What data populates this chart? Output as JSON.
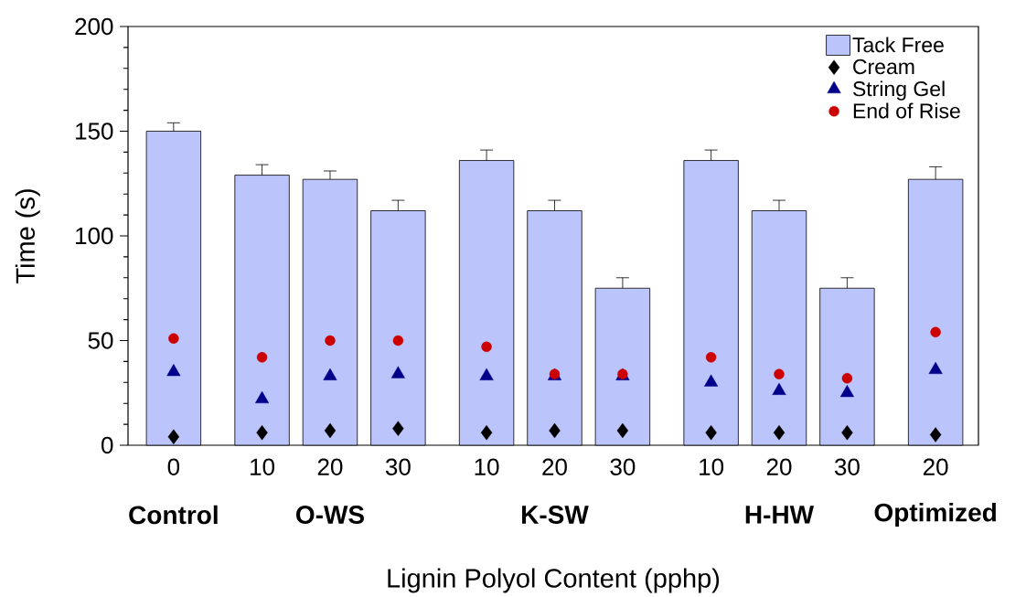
{
  "chart_data": {
    "type": "bar",
    "xlabel": "Lignin Polyol Content (pphp)",
    "ylabel": "Time (s)",
    "categories": [
      "0",
      "10",
      "20",
      "30",
      "10",
      "20",
      "30",
      "10",
      "20",
      "30",
      "20"
    ],
    "annotations": [
      "Control",
      "O-WS",
      "K-SW",
      "H-HW",
      "Optimized"
    ],
    "series": [
      {
        "name": "Tack Free",
        "color": "#bcc5fb",
        "values": [
          150,
          129,
          127,
          112,
          136,
          112,
          75,
          136,
          112,
          75,
          127
        ],
        "errors": [
          4,
          5,
          4,
          5,
          5,
          5,
          5,
          5,
          5,
          5,
          6
        ]
      },
      {
        "name": "Cream",
        "type": "scatter",
        "marker": "diamond",
        "color": "#000000",
        "values": [
          4,
          6,
          7,
          8,
          6,
          7,
          7,
          6,
          6,
          6,
          5
        ]
      },
      {
        "name": "String Gel",
        "type": "scatter",
        "marker": "triangle",
        "color": "#00008b",
        "values": [
          35,
          22,
          33,
          34,
          33,
          33,
          33,
          30,
          26,
          25,
          36
        ]
      },
      {
        "name": "End of Rise",
        "type": "scatter",
        "marker": "circle",
        "color": "#cc0000",
        "values": [
          51,
          42,
          50,
          50,
          47,
          34,
          34,
          42,
          34,
          32,
          54
        ]
      }
    ],
    "ylim": [
      0,
      200
    ],
    "yticks": [
      0,
      50,
      100,
      150,
      200
    ],
    "legend": "top right"
  }
}
